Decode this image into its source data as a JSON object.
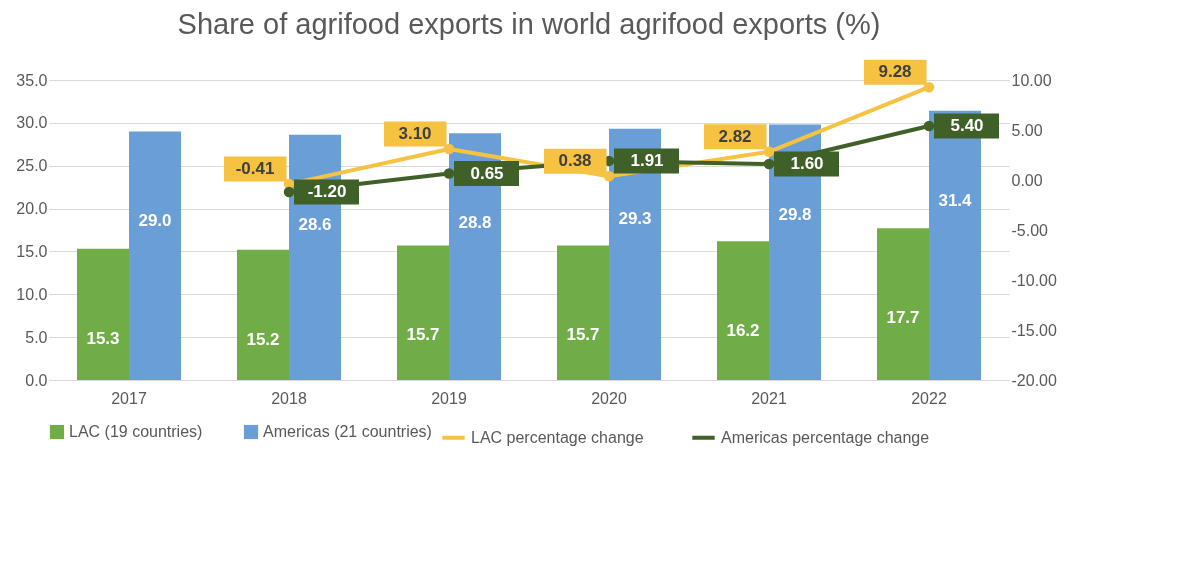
{
  "chart_data": {
    "type": "bar",
    "title": "Share of agrifood exports in world agrifood exports (%)",
    "categories": [
      "2017",
      "2018",
      "2019",
      "2020",
      "2021",
      "2022"
    ],
    "series": [
      {
        "name": "LAC (19 countries)",
        "color": "#70ad47",
        "values": [
          15.3,
          15.2,
          15.7,
          15.7,
          16.2,
          17.7
        ],
        "value_labels": [
          "15.3",
          "15.2",
          "15.7",
          "15.7",
          "16.2",
          "17.7"
        ]
      },
      {
        "name": "Americas (21 countries)",
        "color": "#6a9ed6",
        "values": [
          29.0,
          28.6,
          28.8,
          29.3,
          29.8,
          31.4
        ],
        "value_labels": [
          "29.0",
          "28.6",
          "28.8",
          "29.3",
          "29.8",
          "31.4"
        ]
      },
      {
        "name": "LAC percentage change",
        "type": "line",
        "axis": "y2",
        "color": "#f5c242",
        "values": [
          null,
          -0.41,
          3.1,
          0.38,
          2.82,
          9.28
        ],
        "value_labels": [
          null,
          "-0.41",
          "3.10",
          "0.38",
          "2.82",
          "9.28"
        ]
      },
      {
        "name": "Americas percentage change",
        "type": "line",
        "axis": "y2",
        "color": "#3f6128",
        "values": [
          null,
          -1.2,
          0.65,
          1.91,
          1.6,
          5.4
        ],
        "value_labels": [
          null,
          "-1.20",
          "0.65",
          "1.91",
          "1.60",
          "5.40"
        ]
      }
    ],
    "ylim": [
      0,
      35
    ],
    "yticks": [
      {
        "value": 0,
        "label": "0.0"
      },
      {
        "value": 5,
        "label": "5.0"
      },
      {
        "value": 10,
        "label": "10.0"
      },
      {
        "value": 15,
        "label": "15.0"
      },
      {
        "value": 20,
        "label": "20.0"
      },
      {
        "value": 25,
        "label": "25.0"
      },
      {
        "value": 30,
        "label": "30.0"
      },
      {
        "value": 35,
        "label": "35.0"
      }
    ],
    "y2lim": [
      -20,
      10
    ],
    "y2ticks": [
      {
        "value": -20,
        "label": "-20.00"
      },
      {
        "value": -15,
        "label": "-15.00"
      },
      {
        "value": -10,
        "label": "-10.00"
      },
      {
        "value": -5,
        "label": "-5.00"
      },
      {
        "value": 0,
        "label": "0.00"
      },
      {
        "value": 5,
        "label": "5.00"
      },
      {
        "value": 10,
        "label": "10.00"
      }
    ],
    "grid": "y",
    "legend": "bottom",
    "marker": "circle",
    "line_style": "solid"
  }
}
